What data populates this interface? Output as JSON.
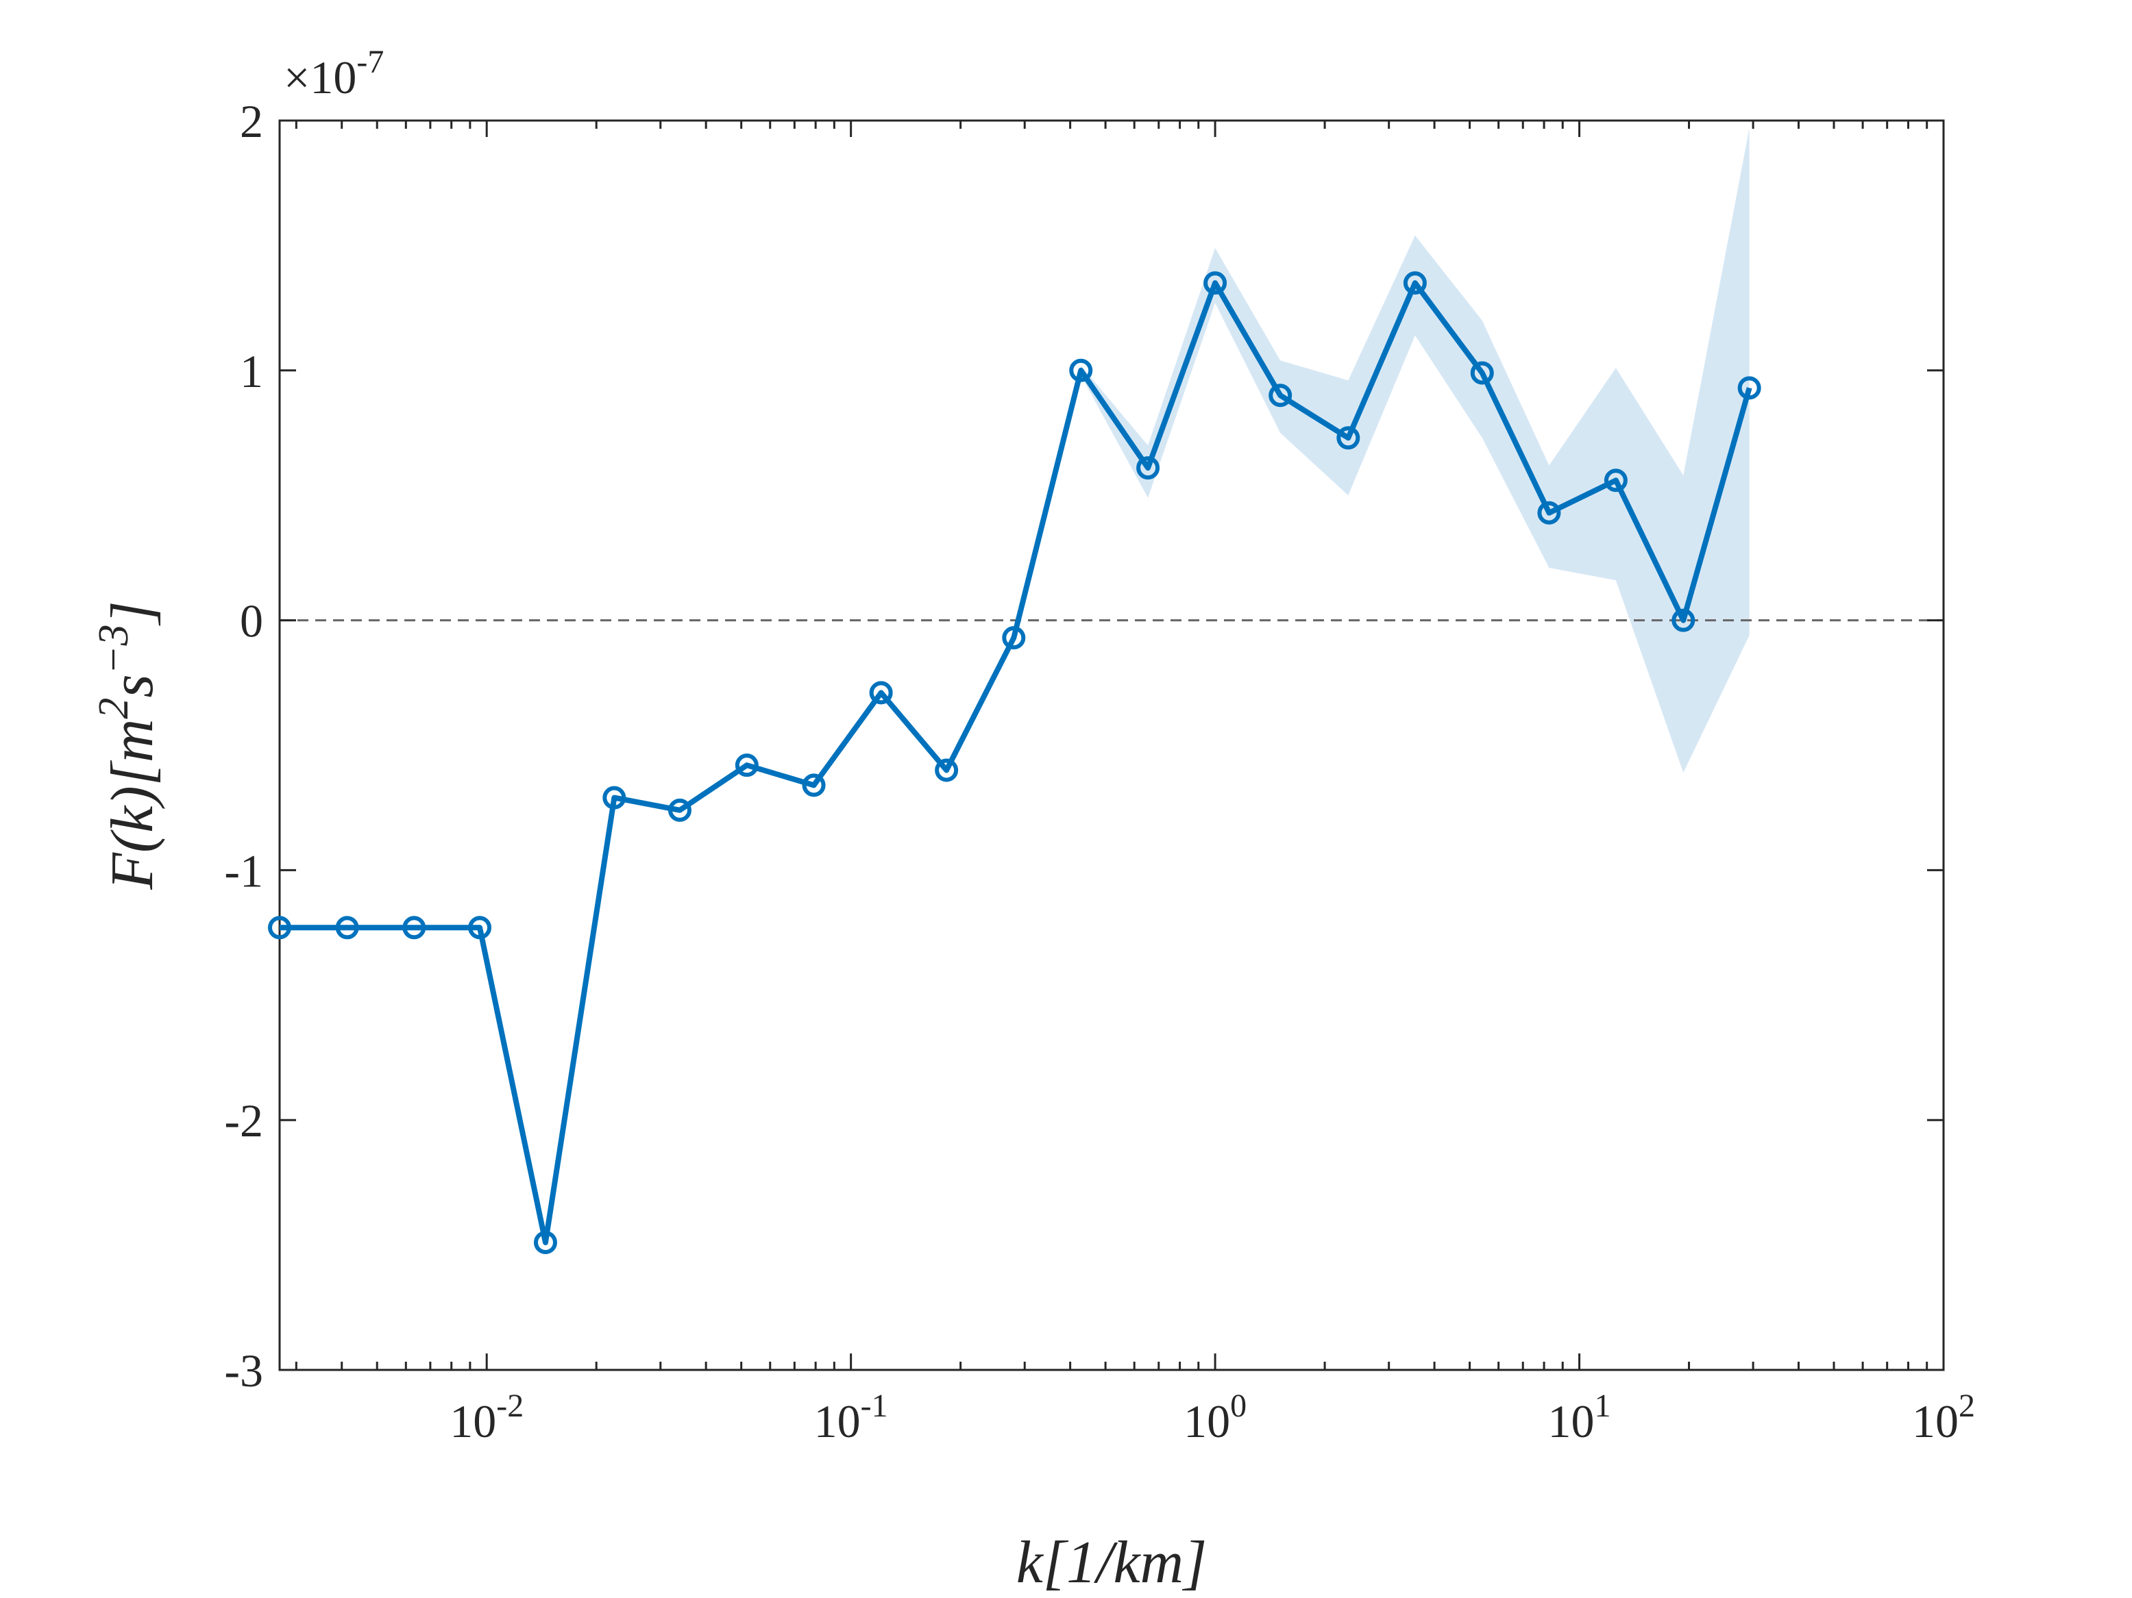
{
  "chart_data": {
    "type": "line",
    "xlabel": [
      {
        "t": "k[1/km]"
      }
    ],
    "ylabel": [
      {
        "t": "F(k)[m"
      },
      {
        "t": "2",
        "sup": true
      },
      {
        "t": "s"
      },
      {
        "t": "−3",
        "sup": true
      },
      {
        "t": "]"
      }
    ],
    "y_multiplier": {
      "base": "×10",
      "exponent": "-7"
    },
    "xscale": "log",
    "xlim": [
      0.0027,
      100
    ],
    "ylim": [
      -3,
      2
    ],
    "xticks": [
      {
        "value": 0.01,
        "label": "10",
        "exponent": "-2"
      },
      {
        "value": 0.1,
        "label": "10",
        "exponent": "-1"
      },
      {
        "value": 1,
        "label": "10",
        "exponent": "0"
      },
      {
        "value": 10,
        "label": "10",
        "exponent": "1"
      },
      {
        "value": 100,
        "label": "10",
        "exponent": "2"
      }
    ],
    "xminorticks": [
      0.003,
      0.004,
      0.005,
      0.006,
      0.007,
      0.008,
      0.009,
      0.02,
      0.03,
      0.04,
      0.05,
      0.06,
      0.07,
      0.08,
      0.09,
      0.2,
      0.3,
      0.4,
      0.5,
      0.6,
      0.7,
      0.8,
      0.9,
      2,
      3,
      4,
      5,
      6,
      7,
      8,
      9,
      20,
      30,
      40,
      50,
      60,
      70,
      80,
      90
    ],
    "yticks": [
      -3,
      -2,
      -1,
      0,
      1,
      2
    ],
    "hline": 0,
    "grid": false,
    "x": [
      0.0027,
      0.00414,
      0.00632,
      0.00957,
      0.0145,
      0.0224,
      0.0339,
      0.0518,
      0.0791,
      0.121,
      0.183,
      0.28,
      0.428,
      0.654,
      1.0,
      1.51,
      2.32,
      3.54,
      5.41,
      8.26,
      12.6,
      19.3,
      29.3
    ],
    "series": [
      {
        "color": "#0072bd",
        "band_color": "#d6e7f4",
        "values": [
          -1.23,
          -1.23,
          -1.23,
          -1.23,
          -2.49,
          -0.71,
          -0.76,
          -0.58,
          -0.66,
          -0.29,
          -0.6,
          -0.07,
          1.0,
          0.61,
          1.35,
          0.9,
          0.73,
          1.35,
          0.99,
          0.43,
          0.56,
          0.0,
          0.93
        ],
        "upper": [
          null,
          null,
          null,
          null,
          null,
          null,
          null,
          null,
          null,
          null,
          null,
          null,
          1.02,
          0.7,
          1.49,
          1.04,
          0.96,
          1.54,
          1.2,
          0.62,
          1.01,
          0.58,
          1.97
        ],
        "lower": [
          null,
          null,
          null,
          null,
          null,
          null,
          null,
          null,
          null,
          null,
          null,
          null,
          0.98,
          0.49,
          1.27,
          0.75,
          0.5,
          1.14,
          0.73,
          0.21,
          0.16,
          -0.61,
          -0.06
        ]
      }
    ]
  }
}
